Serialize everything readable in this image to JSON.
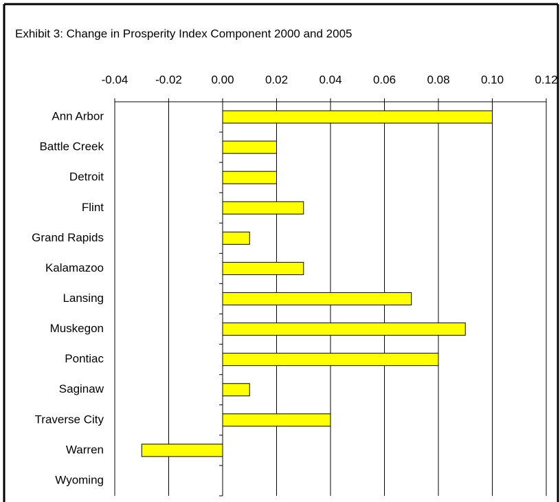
{
  "chart_data": {
    "type": "bar",
    "orientation": "horizontal",
    "title": "Exhibit 3: Change in Prosperity Index Component 2000 and 2005",
    "categories": [
      "Ann Arbor",
      "Battle Creek",
      "Detroit",
      "Flint",
      "Grand Rapids",
      "Kalamazoo",
      "Lansing",
      "Muskegon",
      "Pontiac",
      "Saginaw",
      "Traverse City",
      "Warren",
      "Wyoming"
    ],
    "values": [
      0.1,
      0.02,
      0.02,
      0.03,
      0.01,
      0.03,
      0.07,
      0.09,
      0.08,
      0.01,
      0.04,
      -0.03,
      0
    ],
    "color": "#ffff00",
    "xlim": [
      -0.04,
      0.12
    ],
    "xticks": [
      -0.04,
      -0.02,
      {
        "value": 0,
        "label": "0.00"
      },
      0.02,
      0.04,
      0.06,
      0.08,
      {
        "value": 0.1,
        "label": "0.10"
      },
      0.12
    ],
    "grid": true
  }
}
